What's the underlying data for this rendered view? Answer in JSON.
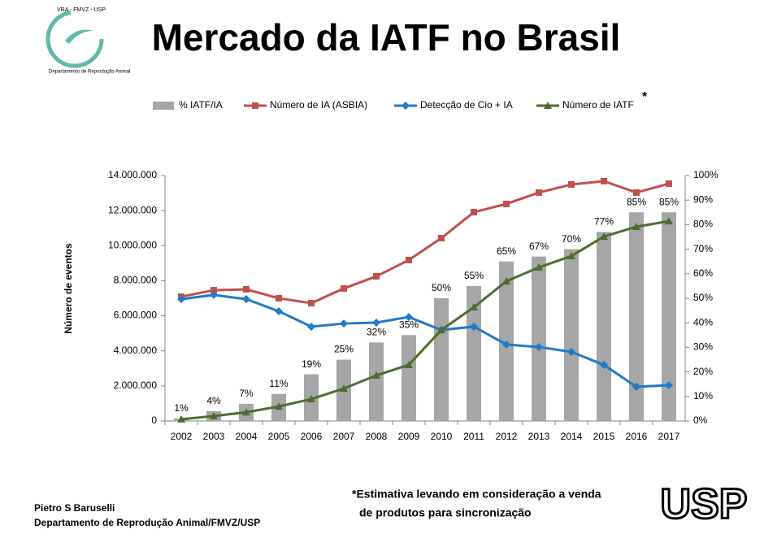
{
  "header": {
    "title": "Mercado da IATF no Brasil",
    "logo_top": "VRA - FMVZ - USP",
    "logo_bottom": "Departamento de Reprodução Animal"
  },
  "chart_data": {
    "type": "combo",
    "y_label": "Número de eventos",
    "legend_note": "*",
    "categories": [
      "2002",
      "2003",
      "2004",
      "2005",
      "2006",
      "2007",
      "2008",
      "2009",
      "2010",
      "2011",
      "2012",
      "2013",
      "2014",
      "2015",
      "2016",
      "2017"
    ],
    "series": [
      {
        "name": "% IATF/IA",
        "type": "bar",
        "axis": "y2",
        "color": "#a6a6a6",
        "values": [
          1,
          4,
          7,
          11,
          19,
          25,
          32,
          35,
          50,
          55,
          65,
          67,
          70,
          77,
          85,
          85
        ],
        "value_labels": [
          "1%",
          "4%",
          "7%",
          "11%",
          "19%",
          "25%",
          "32%",
          "35%",
          "50%",
          "55%",
          "65%",
          "67%",
          "70%",
          "77%",
          "85%",
          "85%"
        ]
      },
      {
        "name": "Número de IA (ASBIA)",
        "type": "line",
        "marker": "square",
        "color": "#c0504d",
        "values": [
          7090000,
          7460000,
          7510000,
          7000000,
          6720000,
          7560000,
          8250000,
          9180000,
          10430000,
          11910000,
          12380000,
          13030000,
          13490000,
          13680000,
          13030000,
          13540000
        ]
      },
      {
        "name": "Detecção de Cio + IA",
        "type": "line",
        "marker": "diamond",
        "color": "#1f7bc4",
        "values": [
          6950000,
          7190000,
          6950000,
          6260000,
          5380000,
          5560000,
          5610000,
          5930000,
          5190000,
          5380000,
          4360000,
          4220000,
          3940000,
          3200000,
          1950000,
          2040000
        ]
      },
      {
        "name": "Número de IATF",
        "type": "line",
        "marker": "triangle",
        "color": "#4e6b2f",
        "values": [
          100000,
          280000,
          500000,
          830000,
          1250000,
          1850000,
          2600000,
          3200000,
          5190000,
          6490000,
          7970000,
          8760000,
          9410000,
          10520000,
          11080000,
          11400000
        ]
      }
    ],
    "ylim": [
      0,
      14000000
    ],
    "yticks": [
      0,
      {
        "value": 2000000,
        "label": "2.000.000"
      },
      {
        "value": 4000000,
        "label": "4.000.000"
      },
      {
        "value": 6000000,
        "label": "6.000.000"
      },
      {
        "value": 8000000,
        "label": "8.000.000"
      },
      {
        "value": 10000000,
        "label": "10.000.000"
      },
      {
        "value": 12000000,
        "label": "12.000.000"
      },
      {
        "value": 14000000,
        "label": "14.000.000"
      }
    ],
    "y2lim": [
      0,
      100
    ],
    "y2ticks": [
      {
        "value": 0,
        "label": "0%"
      },
      {
        "value": 10,
        "label": "10%"
      },
      {
        "value": 20,
        "label": "20%"
      },
      {
        "value": 30,
        "label": "30%"
      },
      {
        "value": 40,
        "label": "40%"
      },
      {
        "value": 50,
        "label": "50%"
      },
      {
        "value": 60,
        "label": "60%"
      },
      {
        "value": 70,
        "label": "70%"
      },
      {
        "value": 80,
        "label": "80%"
      },
      {
        "value": 90,
        "label": "90%"
      },
      {
        "value": 100,
        "label": "100%"
      }
    ],
    "grid": false
  },
  "footer": {
    "author": "Pietro S Baruselli",
    "department": "Departamento de Reprodução Animal/FMVZ/USP",
    "note_line1": "*Estimativa levando em consideração a venda",
    "note_line2": "de produtos para sincronização",
    "logo": "USP"
  }
}
